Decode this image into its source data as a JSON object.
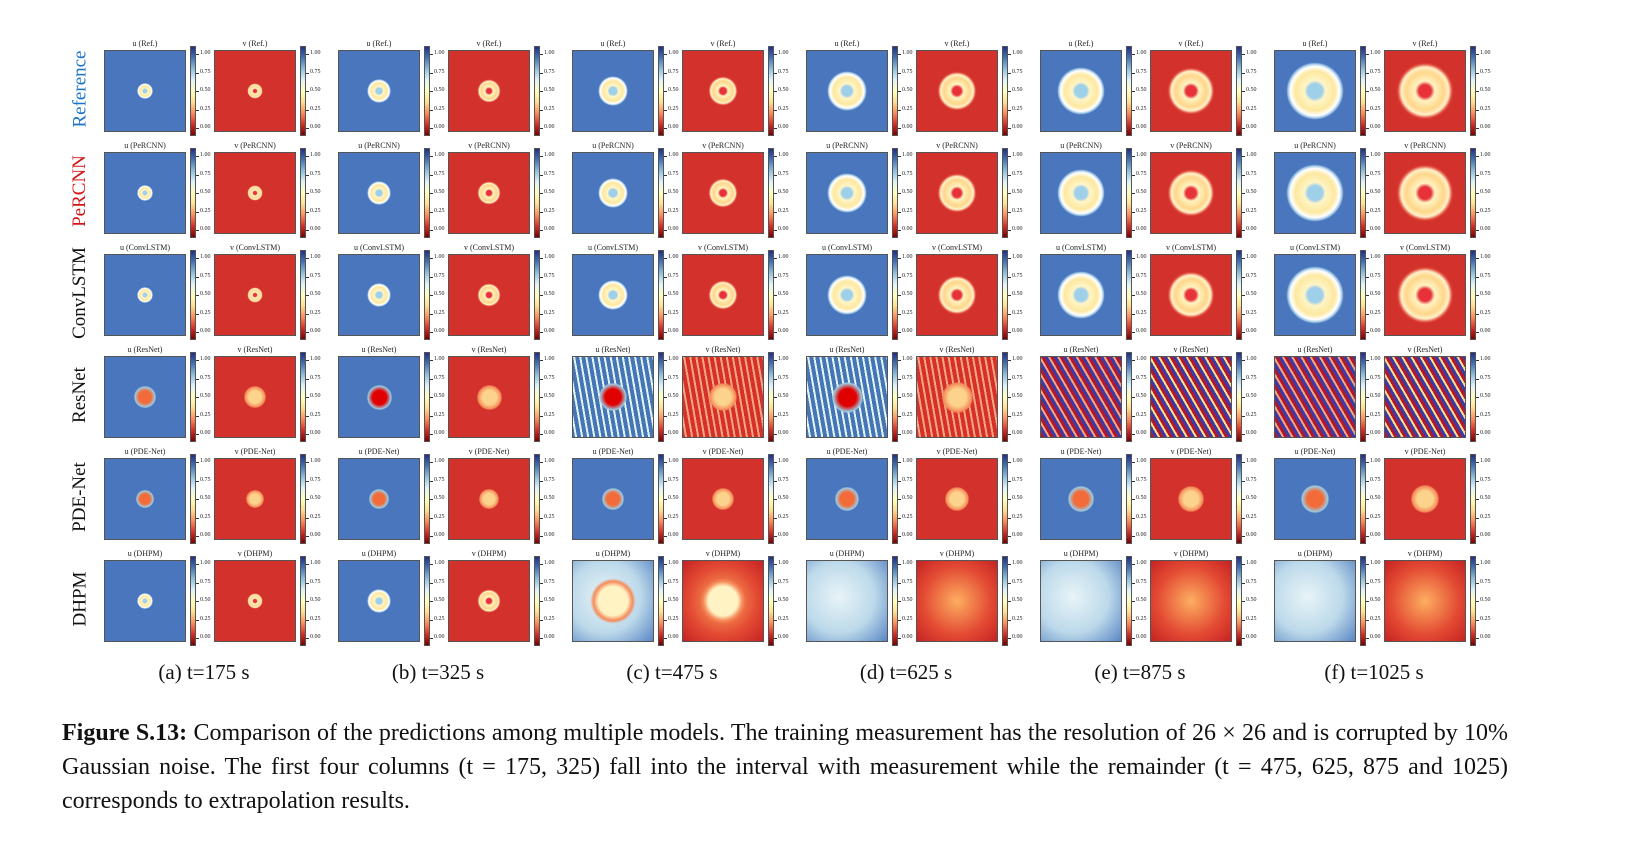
{
  "figure": {
    "rows": [
      {
        "label": "Reference",
        "color": "#1a73c8",
        "model": "Ref."
      },
      {
        "label": "PeRCNN",
        "color": "#d41414",
        "model": "PeRCNN"
      },
      {
        "label": "ConvLSTM",
        "color": "#111111",
        "model": "ConvLSTM"
      },
      {
        "label": "ResNet",
        "color": "#111111",
        "model": "ResNet"
      },
      {
        "label": "PDE-Net",
        "color": "#111111",
        "model": "PDE-Net"
      },
      {
        "label": "DHPM",
        "color": "#111111",
        "model": "DHPM"
      }
    ],
    "columns": [
      "(a) t=175 s",
      "(b) t=325 s",
      "(c) t=475 s",
      "(d) t=625 s",
      "(e) t=875 s",
      "(f) t=1025 s"
    ],
    "variables": [
      "u",
      "v"
    ],
    "colorbar_ticks": [
      "1.00",
      "0.75",
      "0.50",
      "0.25",
      "0.00"
    ]
  },
  "caption": {
    "label": "Figure S.13:",
    "text": "Comparison of the predictions among multiple models. The training measurement has the resolution of 26 × 26 and is corrupted by 10% Gaussian noise. The first four columns (t = 175, 325) fall into the interval with measurement while the remainder (t = 475, 625, 875 and 1025) corresponds to extrapolation results."
  }
}
